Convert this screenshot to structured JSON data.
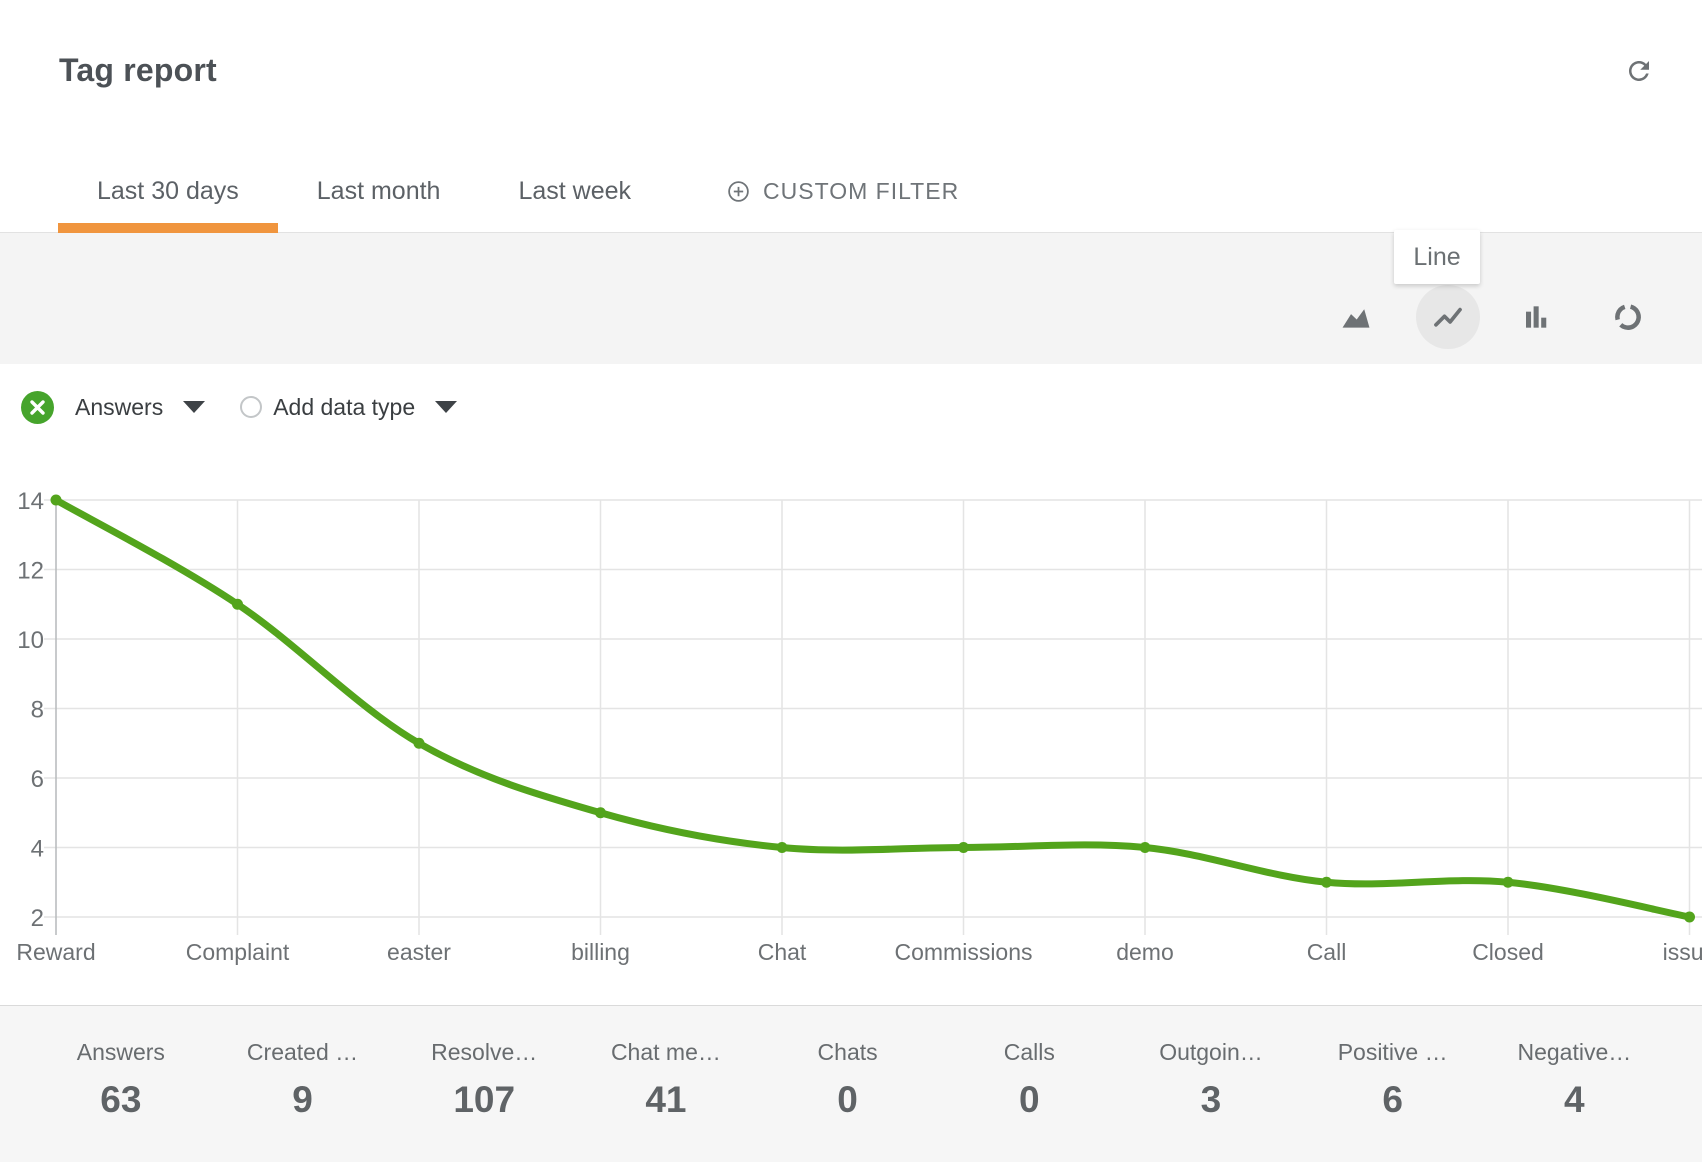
{
  "header": {
    "title": "Tag report"
  },
  "tabs": {
    "items": [
      {
        "label": "Last 30 days",
        "active": true
      },
      {
        "label": "Last month",
        "active": false
      },
      {
        "label": "Last week",
        "active": false
      }
    ],
    "custom_filter_label": "CUSTOM FILTER"
  },
  "toolbar": {
    "tooltip": "Line",
    "chart_types": [
      "area",
      "line",
      "bar",
      "donut"
    ],
    "selected": "line"
  },
  "filters": {
    "series_label": "Answers",
    "add_label": "Add data type"
  },
  "chart_data": {
    "type": "line",
    "title": "",
    "xlabel": "",
    "ylabel": "",
    "categories": [
      "Reward",
      "Complaint",
      "easter",
      "billing",
      "Chat",
      "Commissions",
      "demo",
      "Call",
      "Closed",
      "issue"
    ],
    "series": [
      {
        "name": "Answers",
        "values": [
          14,
          11,
          7,
          5,
          4,
          4,
          4,
          3,
          3,
          2
        ],
        "color": "#53a41c"
      }
    ],
    "yticks": [
      14,
      12,
      10,
      8,
      6,
      4,
      2
    ],
    "ylim": [
      2,
      14
    ],
    "grid": true,
    "legend": "none",
    "smooth": true
  },
  "stats": {
    "items": [
      {
        "label": "Answers",
        "value": "63"
      },
      {
        "label": "Created …",
        "value": "9"
      },
      {
        "label": "Resolve…",
        "value": "107"
      },
      {
        "label": "Chat me…",
        "value": "41"
      },
      {
        "label": "Chats",
        "value": "0"
      },
      {
        "label": "Calls",
        "value": "0"
      },
      {
        "label": "Outgoin…",
        "value": "3"
      },
      {
        "label": "Positive …",
        "value": "6"
      },
      {
        "label": "Negative…",
        "value": "4"
      }
    ]
  },
  "icons": {
    "refresh": "refresh-icon",
    "area": "area-chart-icon",
    "line": "line-chart-icon",
    "bar": "bar-chart-icon",
    "donut": "donut-chart-icon",
    "remove_series": "close-icon",
    "dropdown": "caret-down-icon",
    "custom_filter": "plus-circle-icon",
    "add_data_type": "radio-unchecked-icon"
  },
  "colors": {
    "accent_orange": "#f0953e",
    "line_green": "#53a41c",
    "chip_green": "#46a42c",
    "toolbar_gray": "#f4f4f4",
    "stats_gray": "#f6f6f6"
  }
}
